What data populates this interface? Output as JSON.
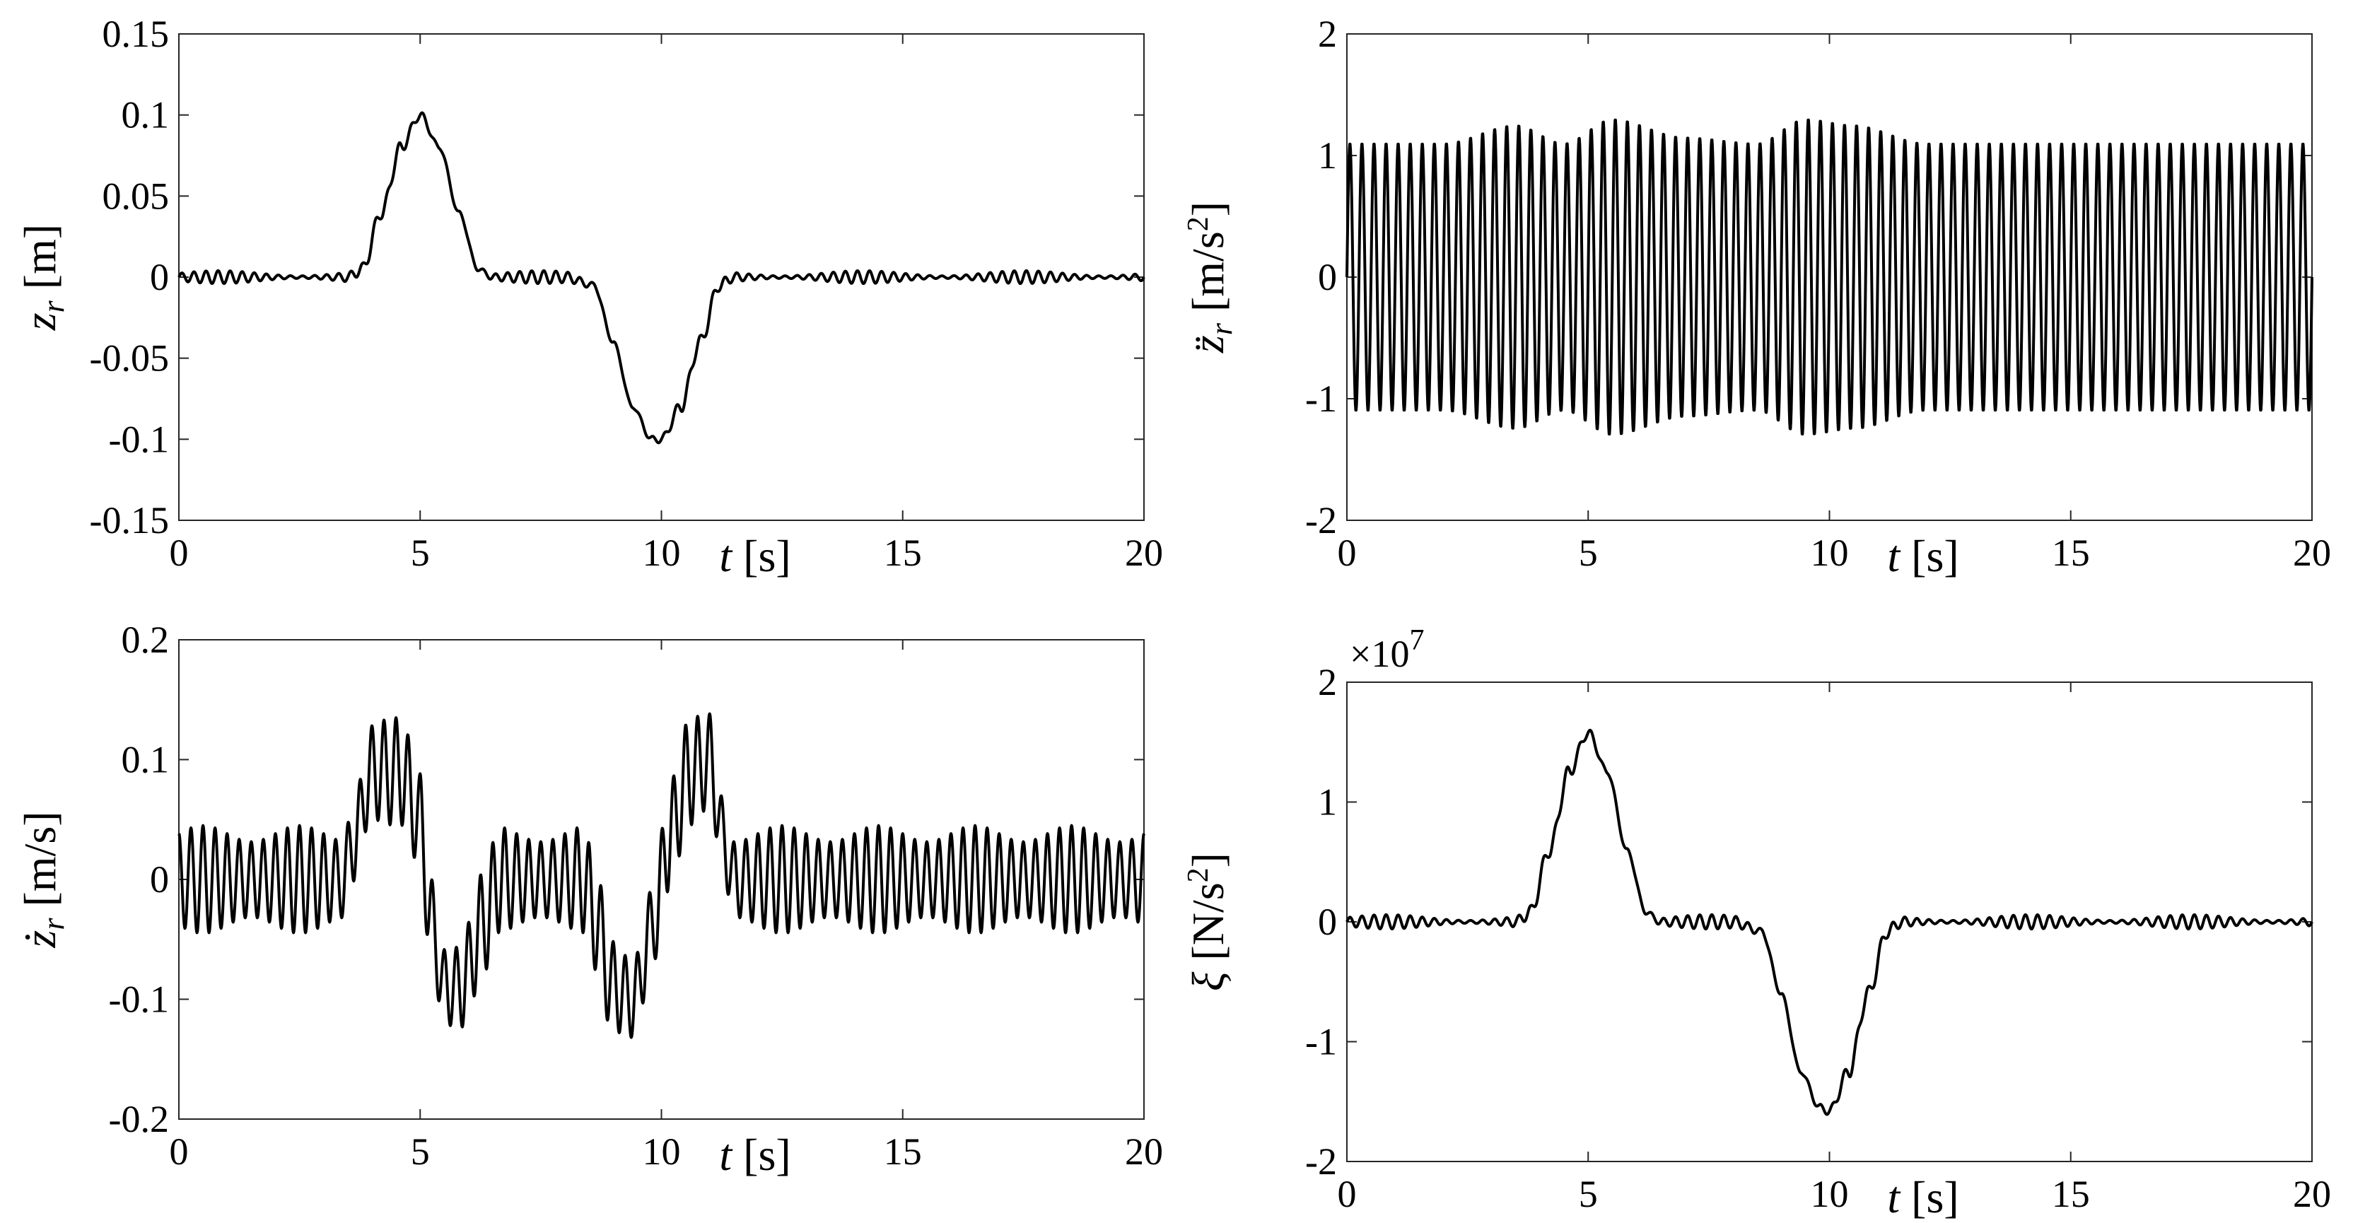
{
  "chart_data": [
    {
      "type": "line",
      "id": "zr",
      "ylabel": {
        "symbol": "z",
        "sub": "r",
        "unit": "[m]"
      },
      "xlabel": {
        "symbol": "t",
        "unit": "[s]"
      },
      "xlim": [
        0,
        20
      ],
      "ylim": [
        -0.15,
        0.15
      ],
      "xticks": [
        0,
        5,
        10,
        15,
        20
      ],
      "yticks": [
        -0.15,
        -0.1,
        -0.05,
        0,
        0.05,
        0.1,
        0.15
      ],
      "xtick_labels": [
        "0",
        "5",
        "10",
        "15",
        "20"
      ],
      "ytick_labels": [
        "-0.15",
        "-0.1",
        "-0.05",
        "0",
        "0.05",
        "0.1",
        "0.15"
      ],
      "grid": false,
      "series": [
        {
          "x": [
            0,
            1,
            2,
            3,
            3.5,
            3.8,
            4.2,
            4.6,
            5.0,
            5.4,
            5.8,
            6.2,
            6.5,
            7,
            8,
            8.6,
            9.0,
            9.4,
            9.8,
            10.0,
            10.4,
            10.8,
            11.2,
            11.5,
            12,
            14,
            16,
            18,
            20
          ],
          "y": [
            0,
            0,
            0,
            0,
            0,
            0.005,
            0.04,
            0.08,
            0.1,
            0.08,
            0.04,
            0.005,
            0,
            0,
            0,
            -0.005,
            -0.04,
            -0.08,
            -0.1,
            -0.1,
            -0.08,
            -0.04,
            -0.005,
            0,
            0,
            0,
            0,
            0,
            0
          ],
          "ripple_amplitude": 0.004,
          "ripple_frequency_hz": 4
        }
      ]
    },
    {
      "type": "line",
      "id": "zr_ddot",
      "ylabel": {
        "symbol": "z̈",
        "sub": "r",
        "unit": "[m/s",
        "sup": "2",
        "unit_end": "]"
      },
      "xlabel": {
        "symbol": "t",
        "unit": "[s]"
      },
      "xlim": [
        0,
        20
      ],
      "ylim": [
        -2,
        2
      ],
      "xticks": [
        0,
        5,
        10,
        15,
        20
      ],
      "yticks": [
        -2,
        -1,
        0,
        1,
        2
      ],
      "xtick_labels": [
        "0",
        "5",
        "10",
        "15",
        "20"
      ],
      "ytick_labels": [
        "-2",
        "-1",
        "0",
        "1",
        "2"
      ],
      "grid": false,
      "series": [
        {
          "oscillation_frequency_hz": 4,
          "amplitude_x": [
            0,
            2,
            3.5,
            4.5,
            5.5,
            7,
            8.5,
            9.5,
            10.5,
            12,
            20
          ],
          "amplitude_y": [
            1.1,
            1.1,
            1.25,
            1.1,
            1.3,
            1.15,
            1.1,
            1.3,
            1.25,
            1.1,
            1.1
          ]
        }
      ]
    },
    {
      "type": "line",
      "id": "zr_dot",
      "ylabel": {
        "symbol": "ż",
        "sub": "r",
        "unit": "[m/s]"
      },
      "xlabel": {
        "symbol": "t",
        "unit": "[s]"
      },
      "xlim": [
        0,
        20
      ],
      "ylim": [
        -0.2,
        0.2
      ],
      "xticks": [
        0,
        5,
        10,
        15,
        20
      ],
      "yticks": [
        -0.2,
        -0.1,
        0,
        0.1,
        0.2
      ],
      "xtick_labels": [
        "0",
        "5",
        "10",
        "15",
        "20"
      ],
      "ytick_labels": [
        "-0.2",
        "-0.1",
        "0",
        "0.1",
        "0.2"
      ],
      "grid": false,
      "series": [
        {
          "oscillation_frequency_hz": 4,
          "oscillation_amplitude": 0.045,
          "baseline_x": [
            0,
            3.4,
            3.6,
            4.0,
            4.6,
            5.0,
            5.2,
            5.5,
            5.8,
            6.4,
            6.6,
            8.4,
            8.6,
            9.0,
            9.4,
            9.9,
            10.1,
            10.6,
            11.0,
            11.3,
            11.5,
            20
          ],
          "baseline_y": [
            0,
            0,
            0.03,
            0.09,
            0.09,
            0.05,
            -0.03,
            -0.09,
            -0.09,
            -0.03,
            0,
            0,
            -0.03,
            -0.09,
            -0.1,
            -0.03,
            0.03,
            0.09,
            0.1,
            0.03,
            0,
            0
          ]
        }
      ]
    },
    {
      "type": "line",
      "id": "xi",
      "ylabel": {
        "symbol": "ξ",
        "unit": "[N/s",
        "sup": "2",
        "unit_end": "]"
      },
      "xlabel": {
        "symbol": "t",
        "unit": "[s]"
      },
      "multiplier": {
        "base": "×10",
        "exp": "7"
      },
      "xlim": [
        0,
        20
      ],
      "ylim": [
        -2,
        2
      ],
      "xticks": [
        0,
        5,
        10,
        15,
        20
      ],
      "yticks": [
        -2,
        -1,
        0,
        1,
        2
      ],
      "xtick_labels": [
        "0",
        "5",
        "10",
        "15",
        "20"
      ],
      "ytick_labels": [
        "-2",
        "-1",
        "0",
        "1",
        "2"
      ],
      "grid": false,
      "series": [
        {
          "x": [
            0,
            1,
            2,
            3,
            3.5,
            3.8,
            4.2,
            4.6,
            5.0,
            5.4,
            5.8,
            6.2,
            6.5,
            7,
            8,
            8.6,
            9.0,
            9.4,
            9.8,
            10.0,
            10.4,
            10.8,
            11.2,
            11.5,
            12,
            14,
            16,
            18,
            20
          ],
          "y": [
            0,
            0,
            0,
            0,
            0,
            0.08,
            0.6,
            1.25,
            1.58,
            1.25,
            0.6,
            0.08,
            0,
            0,
            0,
            -0.08,
            -0.6,
            -1.25,
            -1.55,
            -1.58,
            -1.25,
            -0.6,
            -0.08,
            0,
            0,
            0,
            0,
            0,
            0
          ],
          "ripple_amplitude": 0.06,
          "ripple_frequency_hz": 4
        }
      ]
    }
  ]
}
